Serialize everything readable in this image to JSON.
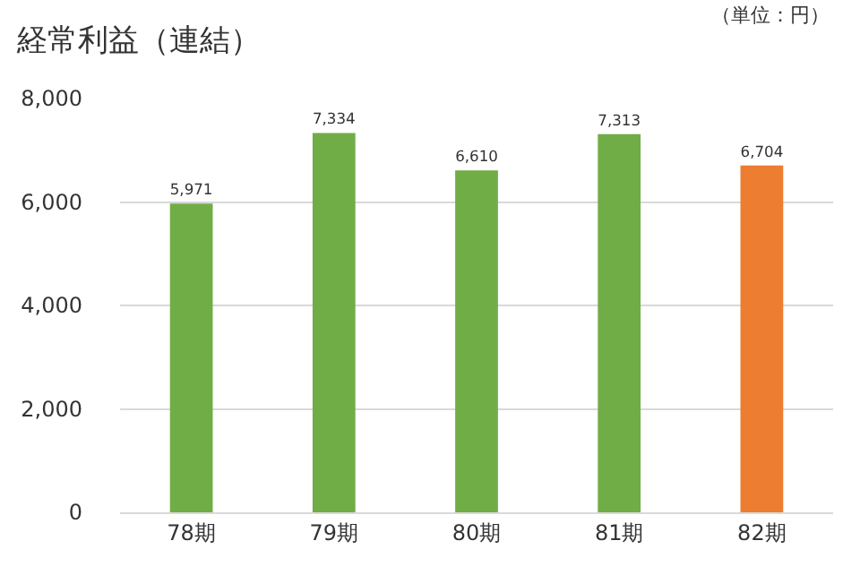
{
  "chart_data": {
    "type": "bar",
    "title": "経常利益（連結）",
    "annotations": [
      "（単位：円）"
    ],
    "categories": [
      "78期",
      "79期",
      "80期",
      "81期",
      "82期"
    ],
    "values": [
      5971,
      7334,
      6610,
      7313,
      6704
    ],
    "colors": [
      "#70ad47",
      "#70ad47",
      "#70ad47",
      "#70ad47",
      "#ed7d31"
    ],
    "ylim": [
      0,
      8000
    ],
    "yticks": [
      {
        "value": 0,
        "label": "0"
      },
      {
        "value": 2000,
        "label": "2,000"
      },
      {
        "value": 4000,
        "label": "4,000"
      },
      {
        "value": 6000,
        "label": "6,000"
      },
      {
        "value": 8000,
        "label": "8,000"
      }
    ],
    "value_labels": [
      "5,971",
      "7,334",
      "6,610",
      "7,313",
      "6,704"
    ],
    "grid": "y"
  }
}
